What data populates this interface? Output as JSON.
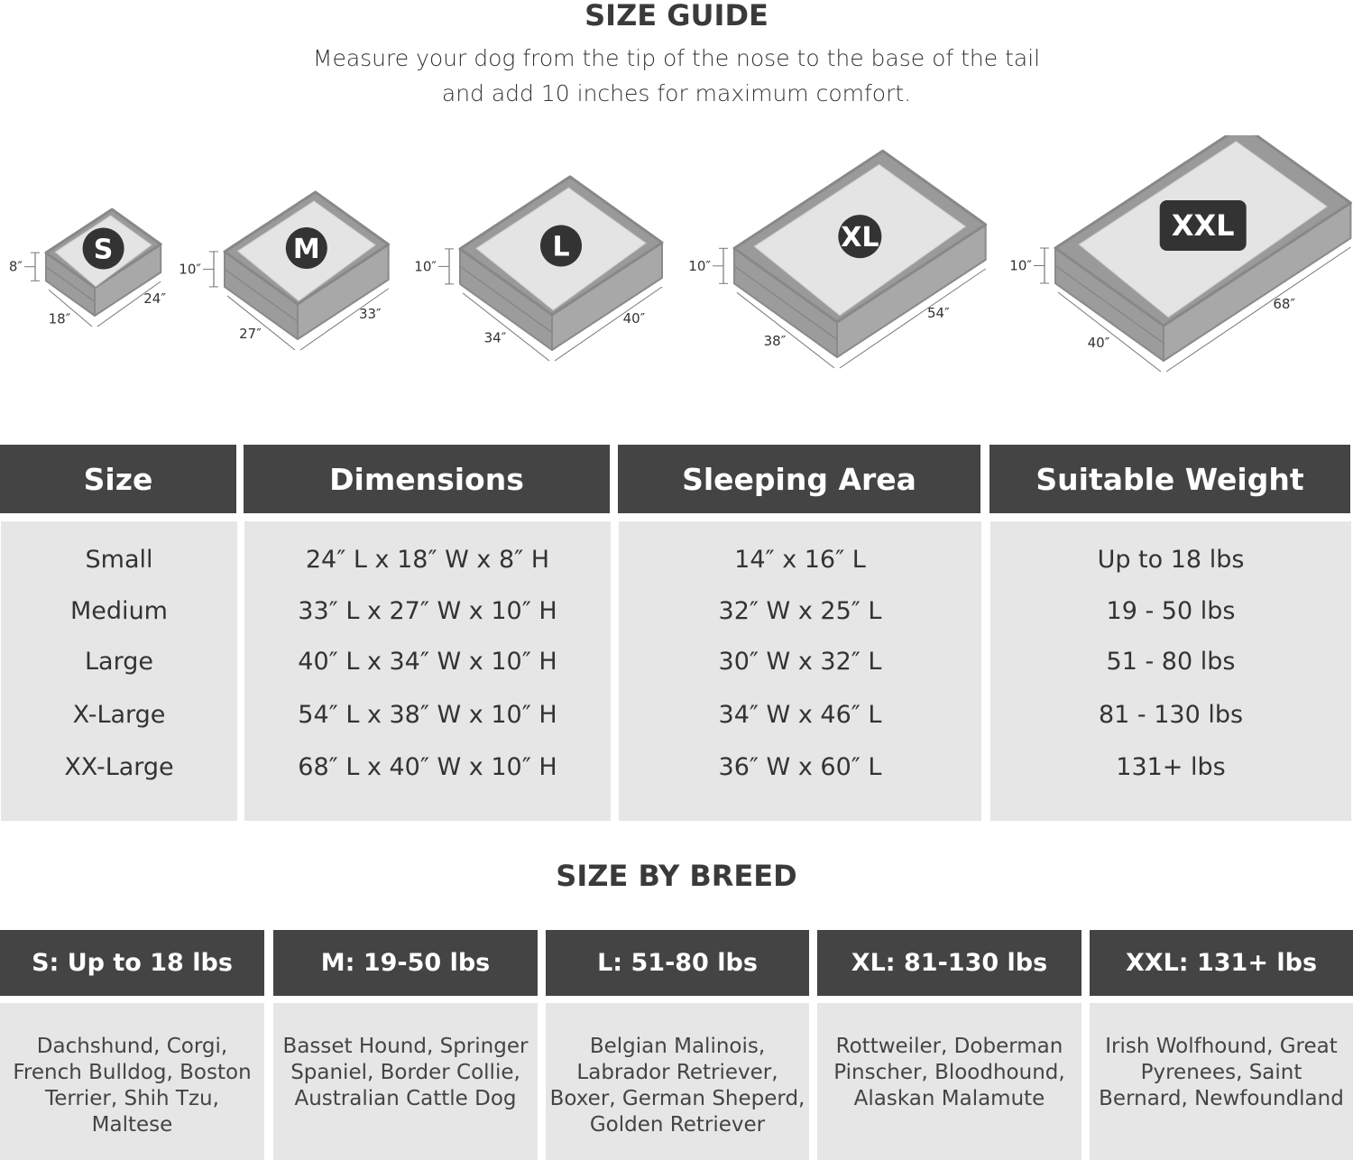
{
  "header": {
    "title": "SIZE GUIDE",
    "subtitle_lines": [
      "Measure your dog from the tip of the nose to the base of the tail",
      "and add 10 inches for maximum comfort."
    ]
  },
  "beds": [
    {
      "badge": "S",
      "height": "8″",
      "depth": "18″",
      "length": "24″"
    },
    {
      "badge": "M",
      "height": "10″",
      "depth": "27″",
      "length": "33″"
    },
    {
      "badge": "L",
      "height": "10″",
      "depth": "34″",
      "length": "40″"
    },
    {
      "badge": "XL",
      "height": "10″",
      "depth": "38″",
      "length": "54″"
    },
    {
      "badge": "XXL",
      "height": "10″",
      "depth": "40″",
      "length": "68″"
    }
  ],
  "size_table": {
    "headers": [
      "Size",
      "Dimensions",
      "Sleeping Area",
      "Suitable Weight"
    ],
    "columns": [
      [
        "Small",
        "Medium",
        "Large",
        "X-Large",
        "XX-Large"
      ],
      [
        "24″ L x 18″ W x 8″ H",
        "33″ L x 27″ W x 10″ H",
        "40″ L x 34″ W x 10″ H",
        "54″ L x 38″ W x 10″ H",
        "68″ L x 40″ W x 10″ H"
      ],
      [
        "14″ x 16″ L",
        "32″ W x 25″ L",
        "30″ W x 32″ L",
        "34″ W x 46″ L",
        "36″ W x 60″ L"
      ],
      [
        "Up to 18 lbs",
        "19 - 50 lbs",
        "51 - 80 lbs",
        "81 - 130 lbs",
        "131+ lbs"
      ]
    ]
  },
  "breed": {
    "title": "SIZE BY BREED",
    "columns": [
      {
        "header": "S: Up to 18 lbs",
        "breeds": "Dachshund, Corgi, French Bulldog, Boston Terrier, Shih Tzu, Maltese"
      },
      {
        "header": "M: 19-50 lbs",
        "breeds": "Basset Hound, Springer Spaniel, Border Collie, Australian Cattle Dog"
      },
      {
        "header": "L: 51-80 lbs",
        "breeds": "Belgian Malinois, Labrador Retriever, Boxer, German Sheperd, Golden Retriever"
      },
      {
        "header": "XL: 81-130 lbs",
        "breeds": "Rottweiler, Doberman Pinscher, Bloodhound, Alaskan Malamute"
      },
      {
        "header": "XXL: 131+ lbs",
        "breeds": "Irish Wolfhound, Great Pyrenees, Saint Bernard, Newfoundland"
      }
    ]
  },
  "colors": {
    "header_bg": "#444444",
    "body_bg": "#e6e6e6",
    "bed_frame": "#9a9a9a",
    "bed_inner": "#e4e4e4",
    "badge": "#333333"
  }
}
